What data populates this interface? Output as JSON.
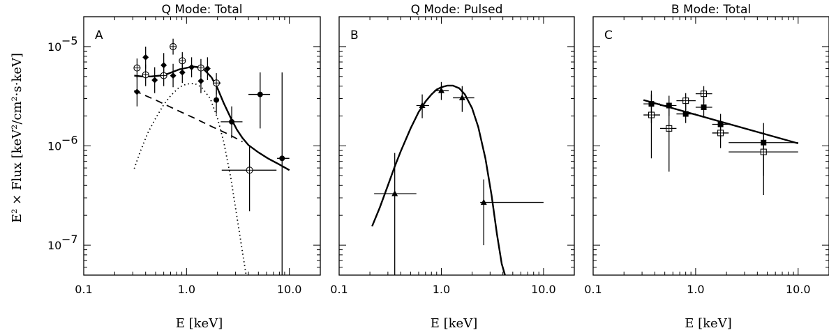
{
  "chart_data": {
    "type": "scatter",
    "ylabel": "E² × Flux [keV²/cm²·s·keV]",
    "xlabel": "E [keV]",
    "xscale": "log",
    "yscale": "log",
    "xlim": [
      0.1,
      20
    ],
    "ylim": [
      5e-08,
      2e-05
    ],
    "x_tick_labels": [
      "0.1",
      "1.0",
      "10.0"
    ],
    "y_tick_labels": [
      {
        "v": 1e-07,
        "base": "10",
        "exp": "−7"
      },
      {
        "v": 1e-06,
        "base": "10",
        "exp": "−6"
      },
      {
        "v": 1e-05,
        "base": "10",
        "exp": "−5"
      }
    ],
    "panels": [
      {
        "title": "Q Mode: Total",
        "label": "A",
        "series": [
          {
            "marker": "filled-diamond",
            "points": [
              {
                "x": 0.33,
                "y": 3.5e-06,
                "xlo": 0.33,
                "xhi": 0.33,
                "ylo": 2.5e-06,
                "yhi": 5e-06
              },
              {
                "x": 0.4,
                "y": 7.8e-06,
                "xlo": 0.4,
                "xhi": 0.4,
                "ylo": 6e-06,
                "yhi": 1e-05
              },
              {
                "x": 0.49,
                "y": 4.6e-06,
                "xlo": 0.49,
                "xhi": 0.49,
                "ylo": 3.4e-06,
                "yhi": 6.2e-06
              },
              {
                "x": 0.6,
                "y": 6.5e-06,
                "xlo": 0.6,
                "xhi": 0.6,
                "ylo": 4.9e-06,
                "yhi": 8.6e-06
              },
              {
                "x": 0.74,
                "y": 5.1e-06,
                "xlo": 0.74,
                "xhi": 0.74,
                "ylo": 3.9e-06,
                "yhi": 6.7e-06
              },
              {
                "x": 0.91,
                "y": 5.5e-06,
                "xlo": 0.91,
                "xhi": 0.91,
                "ylo": 4.3e-06,
                "yhi": 7.1e-06
              },
              {
                "x": 1.12,
                "y": 6.2e-06,
                "xlo": 1.12,
                "xhi": 1.12,
                "ylo": 4.9e-06,
                "yhi": 7.8e-06
              },
              {
                "x": 1.38,
                "y": 4.5e-06,
                "xlo": 1.38,
                "xhi": 1.38,
                "ylo": 3.4e-06,
                "yhi": 5.9e-06
              },
              {
                "x": 1.6,
                "y": 6e-06,
                "xlo": 1.6,
                "xhi": 1.6,
                "ylo": 4.6e-06,
                "yhi": 7.8e-06
              }
            ]
          },
          {
            "marker": "filled-circle",
            "points": [
              {
                "x": 1.95,
                "y": 2.9e-06,
                "xlo": 1.95,
                "xhi": 1.95,
                "ylo": 2.1e-06,
                "yhi": 4e-06
              },
              {
                "x": 2.75,
                "y": 1.75e-06,
                "xlo": 2.15,
                "xhi": 3.5,
                "ylo": 1.2e-06,
                "yhi": 2.5e-06
              },
              {
                "x": 5.2,
                "y": 3.3e-06,
                "xlo": 4.0,
                "xhi": 6.5,
                "ylo": 1.5e-06,
                "yhi": 5.5e-06
              },
              {
                "x": 8.5,
                "y": 7.5e-07,
                "xlo": 7.6,
                "xhi": 10.0,
                "ylo": 5e-08,
                "yhi": 5.5e-06
              }
            ]
          },
          {
            "marker": "open-circle",
            "points": [
              {
                "x": 0.33,
                "y": 6.1e-06,
                "xlo": 0.33,
                "xhi": 0.33,
                "ylo": 4.8e-06,
                "yhi": 7.6e-06
              },
              {
                "x": 0.4,
                "y": 5.2e-06,
                "xlo": 0.4,
                "xhi": 0.4,
                "ylo": 4e-06,
                "yhi": 6.6e-06
              },
              {
                "x": 0.6,
                "y": 5.1e-06,
                "xlo": 0.6,
                "xhi": 0.6,
                "ylo": 4e-06,
                "yhi": 6.4e-06
              },
              {
                "x": 0.74,
                "y": 1e-05,
                "xlo": 0.74,
                "xhi": 0.74,
                "ylo": 8.3e-06,
                "yhi": 1.2e-05
              },
              {
                "x": 0.91,
                "y": 7.2e-06,
                "xlo": 0.91,
                "xhi": 0.91,
                "ylo": 5.9e-06,
                "yhi": 8.8e-06
              },
              {
                "x": 1.38,
                "y": 6.1e-06,
                "xlo": 1.38,
                "xhi": 1.38,
                "ylo": 4.9e-06,
                "yhi": 7.5e-06
              },
              {
                "x": 1.95,
                "y": 4.3e-06,
                "xlo": 1.8,
                "xhi": 2.15,
                "ylo": 3.3e-06,
                "yhi": 5.4e-06
              },
              {
                "x": 4.1,
                "y": 5.7e-07,
                "xlo": 2.2,
                "xhi": 7.5,
                "ylo": 2.2e-07,
                "yhi": 1e-06
              }
            ]
          }
        ],
        "curves": [
          {
            "style": "solid",
            "points": [
              [
                0.31,
                5.1e-06
              ],
              [
                0.37,
                5e-06
              ],
              [
                0.45,
                5e-06
              ],
              [
                0.55,
                5.1e-06
              ],
              [
                0.65,
                5.3e-06
              ],
              [
                0.75,
                5.6e-06
              ],
              [
                0.85,
                5.9e-06
              ],
              [
                1.0,
                6.1e-06
              ],
              [
                1.15,
                6.3e-06
              ],
              [
                1.3,
                6.2e-06
              ],
              [
                1.5,
                5.8e-06
              ],
              [
                1.75,
                4.9e-06
              ],
              [
                2.0,
                3.8e-06
              ],
              [
                2.3,
                2.7e-06
              ],
              [
                2.7,
                1.9e-06
              ],
              [
                3.1,
                1.45e-06
              ],
              [
                3.5,
                1.2e-06
              ],
              [
                4.0,
                1.02e-06
              ],
              [
                5.0,
                8.6e-07
              ],
              [
                6.3,
                7.4e-07
              ],
              [
                8.0,
                6.5e-07
              ],
              [
                10.0,
                5.7e-07
              ]
            ]
          },
          {
            "style": "dashed",
            "points": [
              [
                0.31,
                3.6e-06
              ],
              [
                0.5,
                2.9e-06
              ],
              [
                0.8,
                2.3e-06
              ],
              [
                1.2,
                1.9e-06
              ],
              [
                1.8,
                1.55e-06
              ],
              [
                2.6,
                1.3e-06
              ],
              [
                3.5,
                1.1e-06
              ]
            ]
          },
          {
            "style": "dotted",
            "points": [
              [
                0.31,
                5.9e-07
              ],
              [
                0.35,
                8.5e-07
              ],
              [
                0.42,
                1.35e-06
              ],
              [
                0.5,
                1.9e-06
              ],
              [
                0.6,
                2.6e-06
              ],
              [
                0.7,
                3.2e-06
              ],
              [
                0.85,
                3.9e-06
              ],
              [
                1.0,
                4.2e-06
              ],
              [
                1.2,
                4.25e-06
              ],
              [
                1.4,
                3.9e-06
              ],
              [
                1.7,
                3e-06
              ],
              [
                2.0,
                1.9e-06
              ],
              [
                2.3,
                1.1e-06
              ],
              [
                2.7,
                4.7e-07
              ],
              [
                3.1,
                1.9e-07
              ],
              [
                3.5,
                8.5e-08
              ],
              [
                3.8,
                5e-08
              ]
            ]
          }
        ]
      },
      {
        "title": "Q Mode: Pulsed",
        "label": "B",
        "series": [
          {
            "marker": "filled-triangle",
            "points": [
              {
                "x": 0.35,
                "y": 3.3e-07,
                "xlo": 0.22,
                "xhi": 0.57,
                "ylo": 5e-08,
                "yhi": 8.5e-07
              },
              {
                "x": 0.65,
                "y": 2.55e-06,
                "xlo": 0.57,
                "xhi": 0.76,
                "ylo": 1.9e-06,
                "yhi": 3.3e-06
              },
              {
                "x": 1.0,
                "y": 3.6e-06,
                "xlo": 0.85,
                "xhi": 1.18,
                "ylo": 2.9e-06,
                "yhi": 4.4e-06
              },
              {
                "x": 1.6,
                "y": 3.05e-06,
                "xlo": 1.3,
                "xhi": 2.1,
                "ylo": 2.2e-06,
                "yhi": 4e-06
              },
              {
                "x": 2.6,
                "y": 2.7e-07,
                "xlo": 2.4,
                "xhi": 10.0,
                "ylo": 1e-07,
                "yhi": 4.6e-07
              }
            ]
          }
        ],
        "curves": [
          {
            "style": "solid",
            "points": [
              [
                0.21,
                1.55e-07
              ],
              [
                0.25,
                2.4e-07
              ],
              [
                0.3,
                4e-07
              ],
              [
                0.35,
                6.2e-07
              ],
              [
                0.4,
                8.8e-07
              ],
              [
                0.5,
                1.5e-06
              ],
              [
                0.6,
                2.2e-06
              ],
              [
                0.7,
                2.8e-06
              ],
              [
                0.8,
                3.3e-06
              ],
              [
                0.9,
                3.7e-06
              ],
              [
                1.0,
                3.9e-06
              ],
              [
                1.15,
                4.05e-06
              ],
              [
                1.3,
                4.05e-06
              ],
              [
                1.5,
                3.8e-06
              ],
              [
                1.7,
                3.3e-06
              ],
              [
                2.0,
                2.4e-06
              ],
              [
                2.3,
                1.55e-06
              ],
              [
                2.7,
                7.5e-07
              ],
              [
                3.1,
                3.2e-07
              ],
              [
                3.5,
                1.3e-07
              ],
              [
                3.9,
                6.5e-08
              ],
              [
                4.2,
                5e-08
              ]
            ]
          }
        ]
      },
      {
        "title": "B Mode: Total",
        "label": "C",
        "series": [
          {
            "marker": "filled-square",
            "points": [
              {
                "x": 0.37,
                "y": 2.65e-06,
                "xlo": 0.31,
                "xhi": 0.45,
                "ylo": 1.7e-06,
                "yhi": 3.6e-06
              },
              {
                "x": 0.55,
                "y": 2.55e-06,
                "xlo": 0.45,
                "xhi": 0.65,
                "ylo": 2e-06,
                "yhi": 3.2e-06
              },
              {
                "x": 0.8,
                "y": 2.1e-06,
                "xlo": 0.65,
                "xhi": 1.0,
                "ylo": 1.7e-06,
                "yhi": 2.6e-06
              },
              {
                "x": 1.2,
                "y": 2.45e-06,
                "xlo": 1.0,
                "xhi": 1.45,
                "ylo": 2e-06,
                "yhi": 3e-06
              },
              {
                "x": 1.75,
                "y": 1.65e-06,
                "xlo": 1.45,
                "xhi": 2.1,
                "ylo": 1.2e-06,
                "yhi": 2.1e-06
              },
              {
                "x": 4.6,
                "y": 1.08e-06,
                "xlo": 2.1,
                "xhi": 10.0,
                "ylo": 5e-07,
                "yhi": 1.7e-06
              }
            ]
          },
          {
            "marker": "open-square",
            "points": [
              {
                "x": 0.37,
                "y": 2.05e-06,
                "xlo": 0.31,
                "xhi": 0.45,
                "ylo": 7.5e-07,
                "yhi": 3.3e-06
              },
              {
                "x": 0.55,
                "y": 1.5e-06,
                "xlo": 0.45,
                "xhi": 0.65,
                "ylo": 5.5e-07,
                "yhi": 2.4e-06
              },
              {
                "x": 0.8,
                "y": 2.85e-06,
                "xlo": 0.65,
                "xhi": 1.0,
                "ylo": 2.3e-06,
                "yhi": 3.4e-06
              },
              {
                "x": 1.2,
                "y": 3.35e-06,
                "xlo": 1.0,
                "xhi": 1.45,
                "ylo": 2.7e-06,
                "yhi": 4e-06
              },
              {
                "x": 1.75,
                "y": 1.35e-06,
                "xlo": 1.45,
                "xhi": 2.1,
                "ylo": 9.5e-07,
                "yhi": 1.8e-06
              },
              {
                "x": 4.6,
                "y": 8.7e-07,
                "xlo": 2.1,
                "xhi": 10.0,
                "ylo": 3.2e-07,
                "yhi": 1.4e-06
              }
            ]
          }
        ],
        "curves": [
          {
            "style": "solid",
            "points": [
              [
                0.31,
                2.9e-06
              ],
              [
                10.0,
                1.06e-06
              ]
            ]
          }
        ]
      }
    ]
  }
}
